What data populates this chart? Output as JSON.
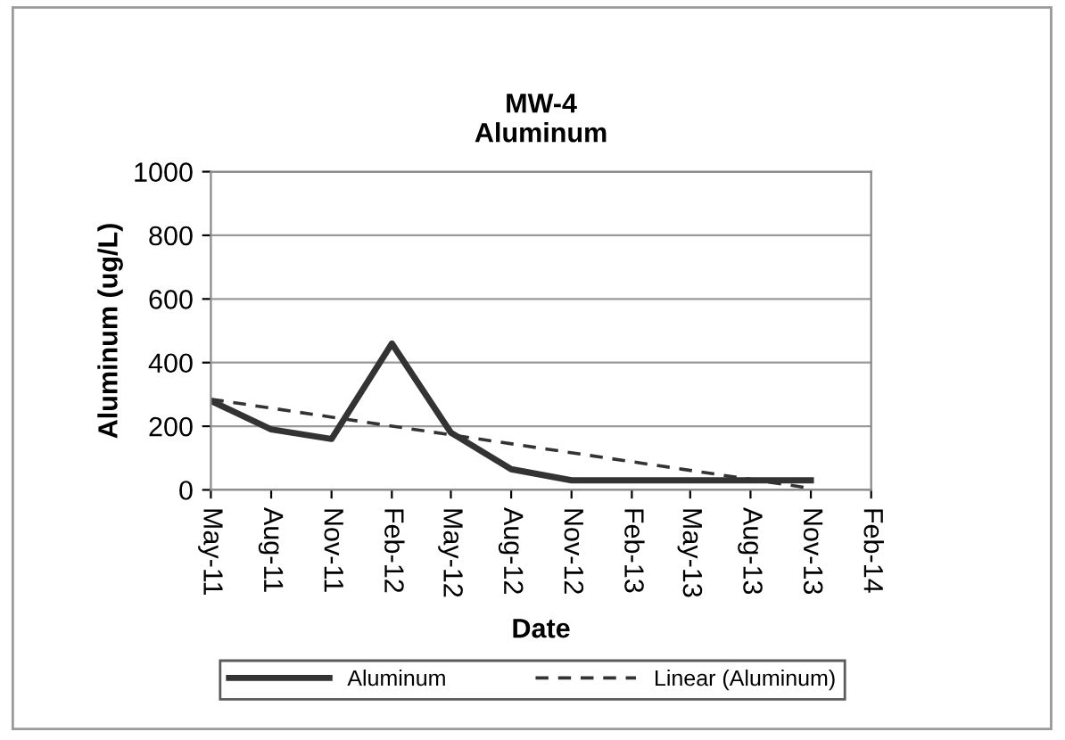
{
  "chart_data": {
    "type": "line",
    "title": "MW-4\nAluminum",
    "xlabel": "Date",
    "ylabel": "Aluminum (ug/L)",
    "x": [
      "2011-05",
      "2011-08",
      "2011-11",
      "2012-02",
      "2012-05",
      "2012-08",
      "2012-11",
      "2013-02",
      "2013-05",
      "2013-08",
      "2013-11"
    ],
    "series": [
      {
        "name": "Aluminum",
        "color": "#333333",
        "line_style": "solid",
        "values": [
          280,
          190,
          160,
          460,
          180,
          65,
          30,
          30,
          30,
          30,
          30
        ]
      },
      {
        "name": "Linear (Aluminum)",
        "color": "#333333",
        "line_style": "dashed",
        "x": [
          "2011-05",
          "2013-11"
        ],
        "values": [
          285,
          5
        ]
      }
    ],
    "xlim": [
      "2011-05",
      "2014-02"
    ],
    "xticks": [
      {
        "value": "2011-05",
        "label": "May-11"
      },
      {
        "value": "2011-08",
        "label": "Aug-11"
      },
      {
        "value": "2011-11",
        "label": "Nov-11"
      },
      {
        "value": "2012-02",
        "label": "Feb-12"
      },
      {
        "value": "2012-05",
        "label": "May-12"
      },
      {
        "value": "2012-08",
        "label": "Aug-12"
      },
      {
        "value": "2012-11",
        "label": "Nov-12"
      },
      {
        "value": "2013-02",
        "label": "Feb-13"
      },
      {
        "value": "2013-05",
        "label": "May-13"
      },
      {
        "value": "2013-08",
        "label": "Aug-13"
      },
      {
        "value": "2013-11",
        "label": "Nov-13"
      },
      {
        "value": "2014-02",
        "label": "Feb-14"
      }
    ],
    "ylim": [
      0,
      1000
    ],
    "yticks": [
      0,
      200,
      400,
      600,
      800,
      1000
    ],
    "grid": "y",
    "legend": "bottom",
    "marker": "none"
  }
}
